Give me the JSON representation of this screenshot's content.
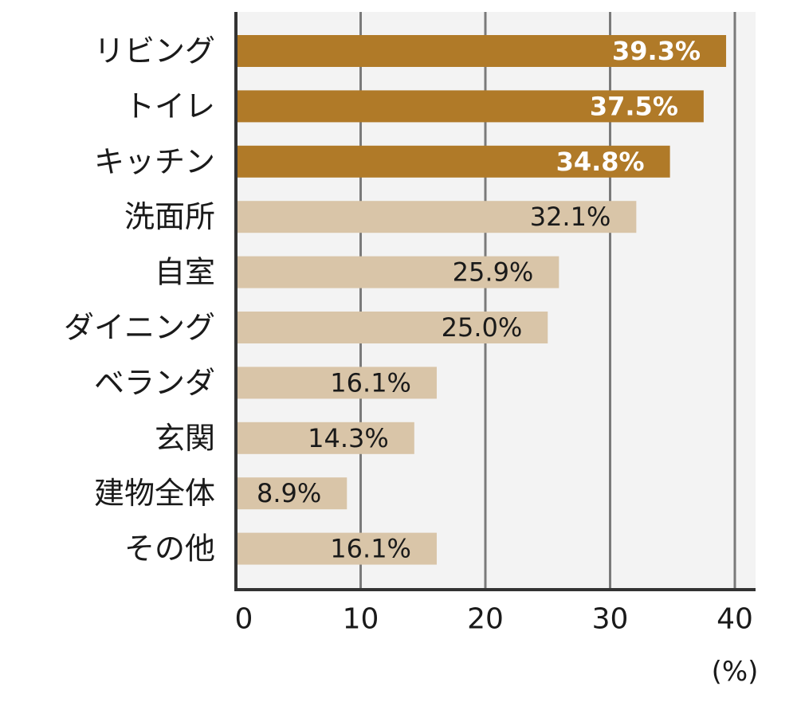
{
  "chart_data": {
    "type": "bar",
    "orientation": "horizontal",
    "categories": [
      "リビング",
      "トイレ",
      "キッチン",
      "洗面所",
      "自室",
      "ダイニング",
      "ベランダ",
      "玄関",
      "建物全体",
      "その他"
    ],
    "values": [
      39.3,
      37.5,
      34.8,
      32.1,
      25.9,
      25.0,
      16.1,
      14.3,
      8.9,
      16.1
    ],
    "data_labels": [
      "39.3%",
      "37.5%",
      "34.8%",
      "32.1%",
      "25.9%",
      "25.0%",
      "16.1%",
      "14.3%",
      "8.9%",
      "16.1%"
    ],
    "highlighted": [
      true,
      true,
      true,
      false,
      false,
      false,
      false,
      false,
      false,
      false
    ],
    "xlim": [
      0,
      42
    ],
    "xticks": [
      0,
      10,
      20,
      30,
      40
    ],
    "xtick_labels": [
      "0",
      "10",
      "20",
      "30",
      "40"
    ],
    "unit_label": "(%)",
    "grid": true,
    "colors": {
      "highlight_bar": "#b07a28",
      "normal_bar": "#d9c5a8",
      "plot_background": "#f3f3f3",
      "gridline": "#7a7a7a",
      "axis": "#333333",
      "highlight_label_text": "#ffffff",
      "normal_label_text": "#1a1a1a"
    }
  }
}
